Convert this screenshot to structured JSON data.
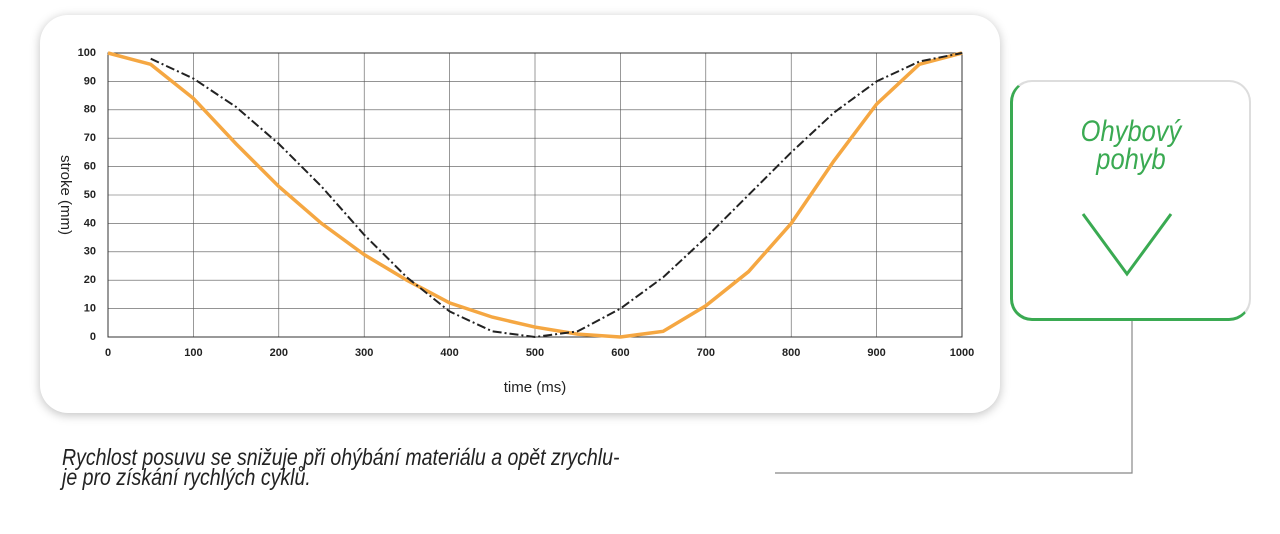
{
  "chart_data": {
    "type": "line",
    "x_label": "time (ms)",
    "y_label": "stroke (mm)",
    "x": [
      0,
      50,
      100,
      150,
      200,
      250,
      300,
      350,
      400,
      450,
      500,
      550,
      600,
      650,
      700,
      750,
      800,
      850,
      900,
      950,
      1000
    ],
    "series": [
      {
        "color": "#f5a742",
        "values": [
          100,
          96,
          84,
          68,
          53,
          40,
          29,
          20,
          12,
          7,
          3.5,
          1,
          0,
          2,
          11,
          23,
          40,
          62,
          82,
          96,
          100
        ]
      },
      {
        "color": "#222222",
        "dashed": true,
        "values": [
          null,
          98,
          91,
          81,
          68,
          53,
          36,
          21,
          9,
          2,
          0,
          2,
          10,
          21,
          35,
          50,
          65,
          79,
          90,
          97,
          100
        ]
      }
    ],
    "xlim": [
      0,
      1000
    ],
    "xticks": [
      0,
      100,
      200,
      300,
      400,
      500,
      600,
      700,
      800,
      900,
      1000
    ],
    "ylim": [
      0,
      100
    ],
    "yticks": [
      0,
      10,
      20,
      30,
      40,
      50,
      60,
      70,
      80,
      90,
      100
    ],
    "grid": true
  },
  "side_card": {
    "lines": [
      "Ohybový",
      "pohyb"
    ]
  },
  "caption": [
    "Rychlost posuvu se snižuje při ohýbání materiálu a opět zrychlu-",
    "je pro získání rychlých cyklů."
  ]
}
